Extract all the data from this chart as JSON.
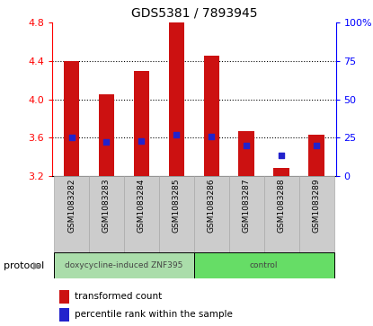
{
  "title": "GDS5381 / 7893945",
  "samples": [
    "GSM1083282",
    "GSM1083283",
    "GSM1083284",
    "GSM1083285",
    "GSM1083286",
    "GSM1083287",
    "GSM1083288",
    "GSM1083289"
  ],
  "bar_bottoms": [
    3.2,
    3.2,
    3.2,
    3.2,
    3.2,
    3.2,
    3.2,
    3.2
  ],
  "bar_tops": [
    4.4,
    4.05,
    4.3,
    4.8,
    4.46,
    3.67,
    3.28,
    3.63
  ],
  "blue_dots": [
    3.6,
    3.56,
    3.57,
    3.63,
    3.61,
    3.52,
    3.42,
    3.52
  ],
  "ylim": [
    3.2,
    4.8
  ],
  "yticks_left": [
    3.2,
    3.6,
    4.0,
    4.4,
    4.8
  ],
  "yticks_right": [
    0,
    25,
    50,
    75,
    100
  ],
  "yticks_right_vals": [
    3.2,
    3.6,
    4.0,
    4.4,
    4.8
  ],
  "bar_color": "#cc1111",
  "dot_color": "#2222cc",
  "protocol_groups": [
    {
      "label": "doxycycline-induced ZNF395",
      "start": 0,
      "end": 4,
      "color": "#aaddaa"
    },
    {
      "label": "control",
      "start": 4,
      "end": 8,
      "color": "#66dd66"
    }
  ],
  "protocol_label": "protocol",
  "legend_items": [
    {
      "color": "#cc1111",
      "label": "transformed count"
    },
    {
      "color": "#2222cc",
      "label": "percentile rank within the sample"
    }
  ],
  "sample_bg_color": "#cccccc",
  "sample_border_color": "#aaaaaa",
  "bar_width": 0.45
}
